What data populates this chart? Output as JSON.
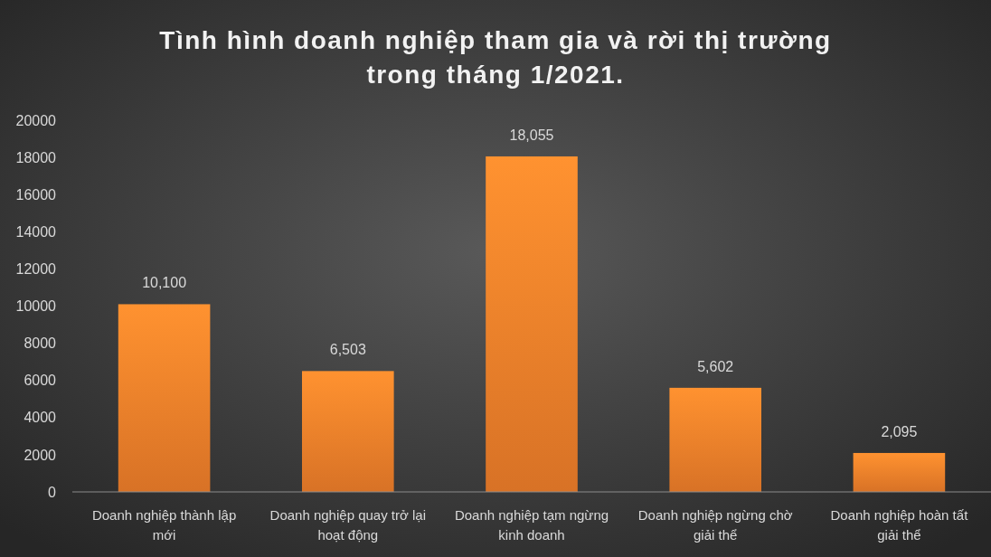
{
  "chart_data": {
    "type": "bar",
    "title": "Tình hình doanh nghiệp tham gia và rời thị trường\ntrong tháng 1/2021.",
    "categories": [
      "Doanh nghiệp thành lập mới",
      "Doanh nghiệp quay trở lại hoạt động",
      "Doanh nghiệp tạm ngừng kinh doanh",
      "Doanh nghiệp ngừng chờ giải thể",
      "Doanh nghiệp hoàn tất giải thể"
    ],
    "values": [
      10100,
      6503,
      18055,
      5602,
      2095
    ],
    "value_labels": [
      "10,100",
      "6,503",
      "18,055",
      "5,602",
      "2,095"
    ],
    "color": "#f07f2a",
    "ylim": [
      0,
      20000
    ],
    "yticks": [
      0,
      2000,
      4000,
      6000,
      8000,
      10000,
      12000,
      14000,
      16000,
      18000,
      20000
    ],
    "grid": false
  }
}
